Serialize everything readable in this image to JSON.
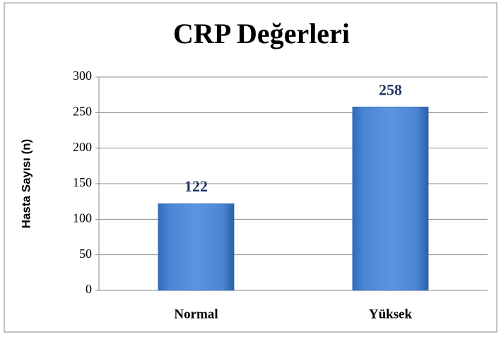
{
  "chart_data": {
    "type": "bar",
    "title": "CRP Değerleri",
    "y_label": "Hasta Sayısı (n)",
    "categories": [
      "Normal",
      "Yüksek"
    ],
    "values": [
      122,
      258
    ],
    "color": "#4a86d4",
    "ylim": [
      0,
      300
    ],
    "yticks": [
      0,
      50,
      100,
      150,
      200,
      250,
      300
    ],
    "grid": true
  }
}
